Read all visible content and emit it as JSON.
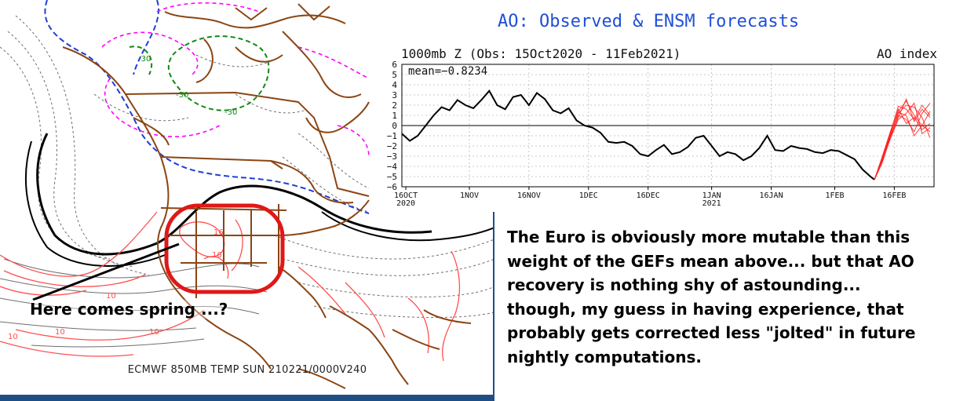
{
  "map": {
    "caption": "ECMWF 850MB TEMP SUN 210221/0000V240",
    "annotation": "Here comes spring ...?",
    "contour_labels": [
      "-30",
      "-30",
      "-30",
      "10",
      "10",
      "10",
      "10",
      "16",
      "16"
    ],
    "colors": {
      "land_border": "#8b4513",
      "cold_contour": "#1f3fd6",
      "warm_contour": "#ff5050",
      "freezing_line": "#000000",
      "very_cold_contour": "#ff00ff",
      "coldest_contour": "#128a12",
      "highlight_oval": "#e01818",
      "bottom_bar": "#1f4e85"
    }
  },
  "chart_data": {
    "type": "line",
    "title": "AO: Observed & ENSM forecasts",
    "subtitle": "1000mb Z (Obs: 15Oct2020 - 11Feb2021)",
    "right_label": "AO index",
    "annotation": "mean=-0.8234",
    "xlabel": "",
    "ylabel": "",
    "x_ticks": [
      "16OCT\n2020",
      "1NOV",
      "16NOV",
      "1DEC",
      "16DEC",
      "1JAN\n2021",
      "16JAN",
      "1FEB",
      "16FEB"
    ],
    "ylim": [
      -6,
      6
    ],
    "y_ticks": [
      6,
      5,
      4,
      3,
      2,
      1,
      0,
      -1,
      -2,
      -3,
      -4,
      -5,
      -6
    ],
    "grid": true,
    "zero_line": true,
    "series": [
      {
        "kind": "observed",
        "color": "#000000",
        "x": [
          "2020-10-15",
          "2020-10-17",
          "2020-10-19",
          "2020-10-21",
          "2020-10-23",
          "2020-10-25",
          "2020-10-27",
          "2020-10-29",
          "2020-10-31",
          "2020-11-02",
          "2020-11-04",
          "2020-11-06",
          "2020-11-08",
          "2020-11-10",
          "2020-11-12",
          "2020-11-14",
          "2020-11-16",
          "2020-11-18",
          "2020-11-20",
          "2020-11-22",
          "2020-11-24",
          "2020-11-26",
          "2020-11-28",
          "2020-11-30",
          "2020-12-02",
          "2020-12-04",
          "2020-12-06",
          "2020-12-08",
          "2020-12-10",
          "2020-12-12",
          "2020-12-14",
          "2020-12-16",
          "2020-12-18",
          "2020-12-20",
          "2020-12-22",
          "2020-12-24",
          "2020-12-26",
          "2020-12-28",
          "2020-12-30",
          "2021-01-01",
          "2021-01-03",
          "2021-01-05",
          "2021-01-07",
          "2021-01-09",
          "2021-01-11",
          "2021-01-13",
          "2021-01-15",
          "2021-01-17",
          "2021-01-19",
          "2021-01-21",
          "2021-01-23",
          "2021-01-25",
          "2021-01-27",
          "2021-01-29",
          "2021-01-31",
          "2021-02-02",
          "2021-02-04",
          "2021-02-06",
          "2021-02-08",
          "2021-02-10",
          "2021-02-11"
        ],
        "values": [
          -0.8,
          -1.5,
          -1.0,
          0.0,
          1.0,
          1.8,
          1.5,
          2.5,
          2.0,
          1.7,
          2.5,
          3.4,
          2.0,
          1.6,
          2.8,
          3.0,
          2.0,
          3.2,
          2.6,
          1.5,
          1.2,
          1.7,
          0.5,
          0.0,
          -0.2,
          -0.7,
          -1.6,
          -1.7,
          -1.6,
          -2.0,
          -2.8,
          -3.0,
          -2.4,
          -1.9,
          -2.8,
          -2.6,
          -2.1,
          -1.2,
          -1.0,
          -2.0,
          -3.0,
          -2.6,
          -2.8,
          -3.4,
          -3.0,
          -2.2,
          -1.0,
          -2.4,
          -2.5,
          -2.0,
          -2.2,
          -2.3,
          -2.6,
          -2.7,
          -2.4,
          -2.5,
          -2.9,
          -3.3,
          -4.3,
          -5.0,
          -5.3
        ]
      },
      {
        "kind": "ensemble-forecast",
        "color": "#ff2020",
        "x": [
          "2021-02-11",
          "2021-02-13",
          "2021-02-15",
          "2021-02-17",
          "2021-02-19",
          "2021-02-21",
          "2021-02-23",
          "2021-02-25"
        ],
        "members": [
          [
            -5.3,
            -3.4,
            -1.0,
            1.4,
            2.4,
            1.0,
            0.0,
            1.4
          ],
          [
            -5.3,
            -3.2,
            -0.8,
            1.2,
            2.0,
            1.8,
            0.8,
            -1.2
          ],
          [
            -5.3,
            -3.6,
            -1.2,
            1.0,
            0.6,
            -0.6,
            1.2,
            2.2
          ],
          [
            -5.3,
            -3.0,
            -0.6,
            1.6,
            0.2,
            0.8,
            -0.4,
            0.2
          ],
          [
            -5.3,
            -3.3,
            -1.1,
            0.8,
            2.6,
            0.4,
            1.6,
            0.8
          ],
          [
            -5.3,
            -3.5,
            -0.9,
            1.3,
            1.0,
            -1.0,
            0.0,
            -0.6
          ],
          [
            -5.3,
            -3.1,
            -0.7,
            1.9,
            1.6,
            0.6,
            2.0,
            1.0
          ],
          [
            -5.3,
            -3.4,
            -1.3,
            0.6,
            1.2,
            2.2,
            -0.8,
            -0.2
          ]
        ]
      }
    ]
  },
  "commentary": {
    "lines": [
      "The Euro is obviously more mutable than this",
      "weight of the GEFs mean above... but that AO",
      "recovery is nothing shy of astounding...",
      "though, my guess in having experience, that",
      "probably gets corrected less \"jolted\" in future",
      "nightly computations."
    ]
  }
}
